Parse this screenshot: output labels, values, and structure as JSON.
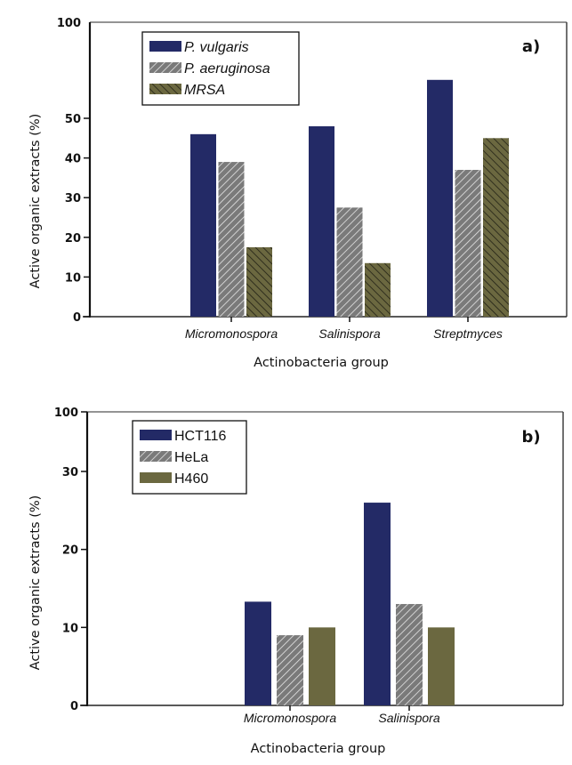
{
  "chart_data": [
    {
      "type": "bar",
      "panel_label": "a)",
      "title": "",
      "xlabel": "Actinobacteria group",
      "ylabel": "Active organic extracts (%)",
      "categories": [
        "Micromonospora",
        "Salinispora",
        "Streptmyces"
      ],
      "series": [
        {
          "name": "P. vulgaris",
          "values": [
            46,
            48,
            70
          ],
          "color": "#232a66",
          "pattern": "solid"
        },
        {
          "name": "P. aeruginosa",
          "values": [
            39,
            27.5,
            37
          ],
          "color": "#7a7a7a",
          "pattern": "hatch-forward-white"
        },
        {
          "name": "MRSA",
          "values": [
            17.5,
            13.5,
            45
          ],
          "color": "#6b6840",
          "pattern": "hatch-back-dark"
        }
      ],
      "yticks": [
        0,
        10,
        20,
        30,
        40,
        50,
        100
      ],
      "ytick_labels": [
        "0",
        "10",
        "20",
        "30",
        "40",
        "50",
        "100"
      ],
      "ylim": [
        0,
        100
      ],
      "axis_break": {
        "from": 50,
        "to": 100
      },
      "legend_italic": true,
      "legend_position": "top-left",
      "grid": false
    },
    {
      "type": "bar",
      "panel_label": "b)",
      "title": "",
      "xlabel": "Actinobacteria group",
      "ylabel": "Active organic extracts (%)",
      "categories": [
        "Micromonospora",
        "Salinispora"
      ],
      "series": [
        {
          "name": "HCT116",
          "values": [
            13.3,
            26
          ],
          "color": "#232a66",
          "pattern": "solid"
        },
        {
          "name": "HeLa",
          "values": [
            9,
            13
          ],
          "color": "#7a7a7a",
          "pattern": "hatch-forward-white"
        },
        {
          "name": "H460",
          "values": [
            10,
            10
          ],
          "color": "#6b6840",
          "pattern": "solid"
        }
      ],
      "yticks": [
        0,
        10,
        20,
        30,
        100
      ],
      "ytick_labels": [
        "0",
        "10",
        "20",
        "30",
        "100"
      ],
      "ylim": [
        0,
        100
      ],
      "axis_break": {
        "from": 30,
        "to": 100
      },
      "legend_italic": false,
      "legend_position": "top-left",
      "grid": false
    }
  ]
}
